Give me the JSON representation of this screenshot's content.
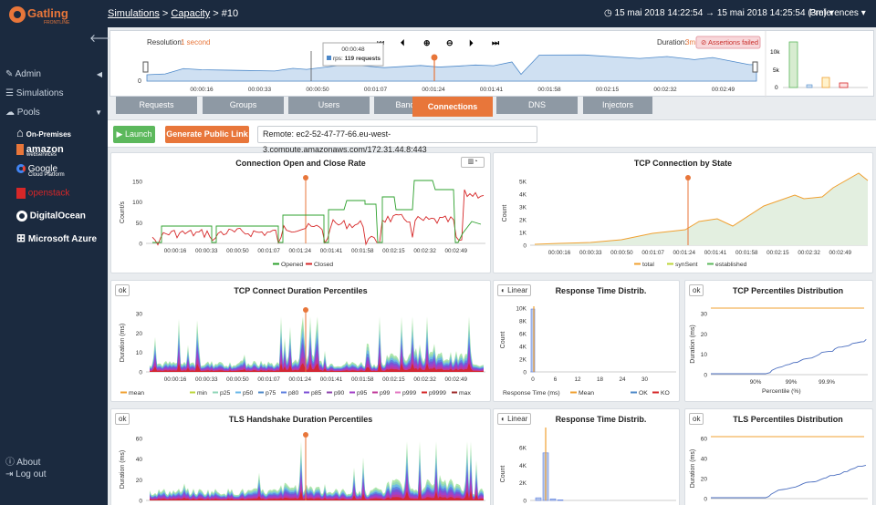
{
  "header": {
    "breadcrumb": {
      "simulations": "Simulations",
      "sep1": " > ",
      "capacity": "Capacity",
      "sep2": " > ",
      "run": "#10"
    },
    "timerange": "15 mai 2018 14:22:54 → 15 mai 2018 14:25:54 (3m)",
    "preferences": "Preferences"
  },
  "sidebar": {
    "admin": "Admin",
    "simulations": "Simulations",
    "pools": "Pools",
    "pool_items": [
      "On-Premises",
      "amazon",
      "Google",
      "openstack",
      "DigitalOcean",
      "Microsoft Azure"
    ],
    "amazon_sub": "webservices",
    "google_sub": "Cloud Platform",
    "about": "About",
    "logout": "Log out"
  },
  "timeline": {
    "resolution_label": "Resolution:",
    "resolution_value": "1 second",
    "duration_label": "Duration:",
    "duration_value": "3m",
    "assertions": "Assertions failed",
    "tooltip_time": "00:00:48",
    "tooltip_rps_label": "rps:",
    "tooltip_rps_value": "119 requests",
    "ticks": [
      "00:00:16",
      "00:00:33",
      "00:00:50",
      "00:01:07",
      "00:01:24",
      "00:01:41",
      "00:01:58",
      "00:02:15",
      "00:02:32",
      "00:02:49"
    ],
    "y_zero": "0",
    "hist_ticks": [
      "10k",
      "5k",
      "0"
    ]
  },
  "tabs": [
    "Requests",
    "Groups",
    "Users",
    "Bandwidth",
    "Connections",
    "DNS",
    "Injectors"
  ],
  "active_tab": "Connections",
  "toolbar": {
    "launch": "Launch",
    "public_link": "Generate Public Link",
    "remote": "Remote: ec2-52-47-77-66.eu-west-3.compute.amazonaws.com/172.31.44.8:443"
  },
  "x_ticks": [
    "00:00:16",
    "00:00:33",
    "00:00:50",
    "00:01:07",
    "00:01:24",
    "00:01:41",
    "00:01:58",
    "00:02:15",
    "00:02:32",
    "00:02:49"
  ],
  "charts": {
    "conn_rate": {
      "title": "Connection Open and Close Rate",
      "ylabel": "Count/s",
      "yticks": [
        "150",
        "100",
        "50",
        "0"
      ],
      "legend": [
        "Opened",
        "Closed"
      ],
      "colors": {
        "opened": "#2ca02c",
        "closed": "#d62728"
      }
    },
    "tcp_state": {
      "title": "TCP Connection by State",
      "ylabel": "Count",
      "yticks": [
        "5K",
        "4K",
        "3K",
        "2K",
        "1K",
        "0"
      ],
      "legend": [
        "total",
        "synSent",
        "established"
      ],
      "colors": {
        "total": "#f0a030",
        "synSent": "#bcd63a",
        "established": "#5cb85c"
      }
    },
    "tcp_pct": {
      "title": "TCP Connect Duration Percentiles",
      "ok": "ok",
      "ylabel": "Duration (ms)",
      "yticks": [
        "30",
        "20",
        "10",
        "0"
      ],
      "legend": [
        "mean",
        "min",
        "p25",
        "p50",
        "p75",
        "p80",
        "p85",
        "p90",
        "p95",
        "p99",
        "p999",
        "p9999",
        "max"
      ]
    },
    "resp_dist1": {
      "title": "Response Time Distrib.",
      "linear": "Linear",
      "ylabel": "Count",
      "xlabel": "Response Time (ms)",
      "yticks": [
        "10K",
        "8K",
        "6K",
        "4K",
        "2K",
        "0"
      ],
      "xticks": [
        "0",
        "6",
        "12",
        "18",
        "24",
        "30"
      ],
      "legend": [
        "Mean",
        "OK",
        "KO"
      ]
    },
    "tcp_dist": {
      "title": "TCP Percentiles Distribution",
      "ok": "ok",
      "ylabel": "Duration (ms)",
      "xlabel": "Percentile (%)",
      "yticks": [
        "30",
        "20",
        "10",
        "0"
      ],
      "xticks": [
        "90%",
        "99%",
        "99.9%"
      ]
    },
    "tls_pct": {
      "title": "TLS Handshake Duration Percentiles",
      "ok": "ok",
      "ylabel": "Duration (ms)",
      "yticks": [
        "60",
        "40",
        "20",
        "0"
      ]
    },
    "resp_dist2": {
      "title": "Response Time Distrib.",
      "linear": "Linear",
      "ylabel": "Count",
      "yticks": [
        "6K",
        "4K",
        "2K",
        "0"
      ]
    },
    "tls_dist": {
      "title": "TLS Percentiles Distribution",
      "ok": "ok",
      "ylabel": "Duration (ms)",
      "yticks": [
        "60",
        "40",
        "20",
        "0"
      ]
    }
  }
}
